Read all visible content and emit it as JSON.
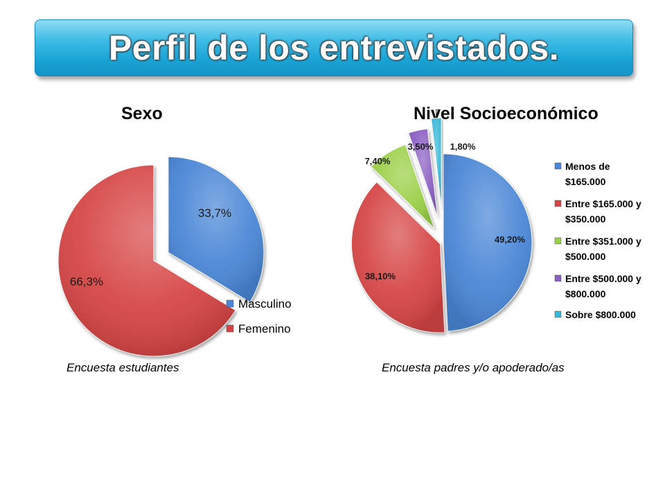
{
  "title": "Perfil de los entrevistados.",
  "colors": {
    "blue": "#4a86d6",
    "red": "#d64545",
    "green": "#9bd046",
    "purple": "#8a5fc2",
    "cyan": "#3ab8d8"
  },
  "chart_data": [
    {
      "type": "pie",
      "title": "Sexo",
      "caption": "Encuesta estudiantes",
      "legend_position": "bottom-right",
      "slices": [
        {
          "name": "Masculino",
          "value": 33.7,
          "label": "33,7%",
          "color": "#4a86d6",
          "exploded": true
        },
        {
          "name": "Femenino",
          "value": 66.3,
          "label": "66,3%",
          "color": "#d64545",
          "exploded": false
        }
      ]
    },
    {
      "type": "pie",
      "title": "Nivel Socioeconómico",
      "caption": "Encuesta padres y/o apoderado/as",
      "legend_position": "right",
      "slices": [
        {
          "name": "Menos de $165.000",
          "legend_lines": [
            "Menos de",
            "$165.000"
          ],
          "value": 49.2,
          "label": "49,20%",
          "color": "#4a86d6",
          "exploded": false
        },
        {
          "name": "Entre $165.000 y $350.000",
          "legend_lines": [
            "Entre $165.000 y",
            "$350.000"
          ],
          "value": 38.1,
          "label": "38,10%",
          "color": "#d64545",
          "exploded": false
        },
        {
          "name": "Entre $351.000 y $500.000",
          "legend_lines": [
            "Entre $351.000 y",
            "$500.000"
          ],
          "value": 7.4,
          "label": "7,40%",
          "color": "#9bd046",
          "exploded": true
        },
        {
          "name": "Entre $500.000 y $800.000",
          "legend_lines": [
            "Entre $500.000 y",
            "$800.000"
          ],
          "value": 3.5,
          "label": "3,50%",
          "color": "#8a5fc2",
          "exploded": true
        },
        {
          "name": "Sobre $800.000",
          "legend_lines": [
            "Sobre $800.000"
          ],
          "value": 1.8,
          "label": "1,80%",
          "color": "#3ab8d8",
          "exploded": true
        }
      ]
    }
  ]
}
